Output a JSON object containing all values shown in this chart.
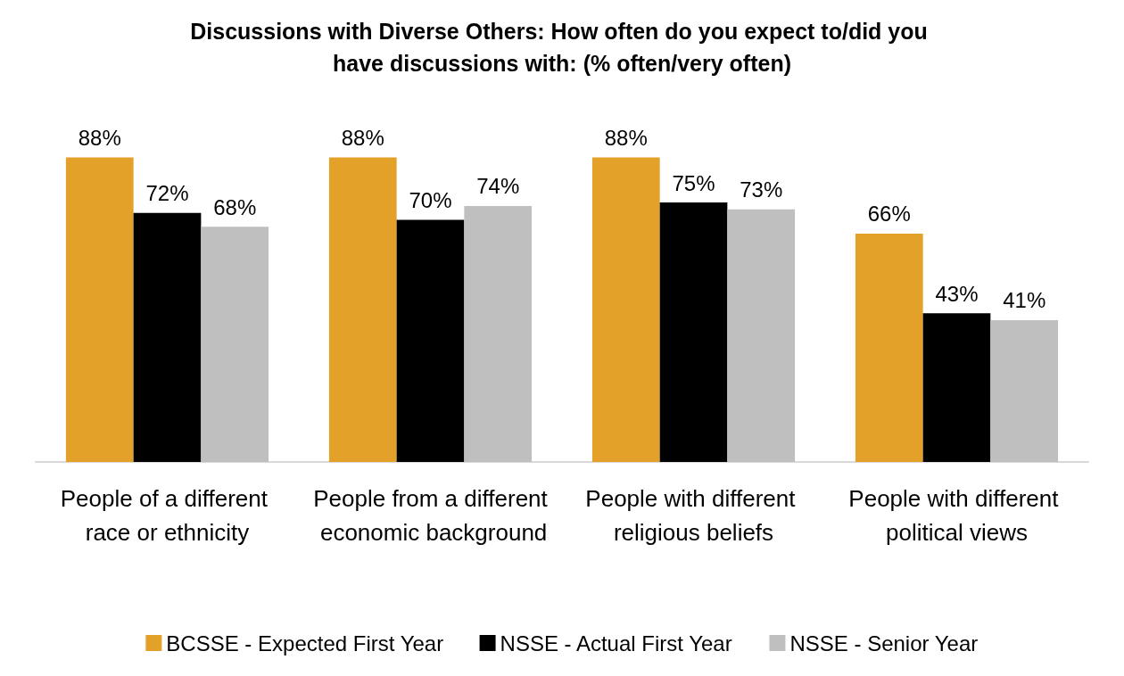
{
  "chart_data": {
    "type": "bar",
    "title": "Discussions with Diverse Others: How often do you expect to/did you have discussions with: (% often/very often)",
    "categories": [
      "People of a different race or ethnicity",
      "People from a different economic background",
      "People with different religious beliefs",
      "People with different political views"
    ],
    "series": [
      {
        "name": "BCSSE - Expected First Year",
        "color": "#e3a12a",
        "values": [
          88,
          88,
          88,
          66
        ],
        "value_labels": [
          "88%",
          "88%",
          "88%",
          "66%"
        ]
      },
      {
        "name": "NSSE - Actual First Year",
        "color": "#000000",
        "values": [
          72,
          70,
          75,
          43
        ],
        "value_labels": [
          "72%",
          "70%",
          "75%",
          "43%"
        ]
      },
      {
        "name": "NSSE - Senior Year",
        "color": "#bfbfbf",
        "values": [
          68,
          74,
          73,
          41
        ],
        "value_labels": [
          "68%",
          "74%",
          "73%",
          "41%"
        ]
      }
    ],
    "legend": "bottom"
  }
}
